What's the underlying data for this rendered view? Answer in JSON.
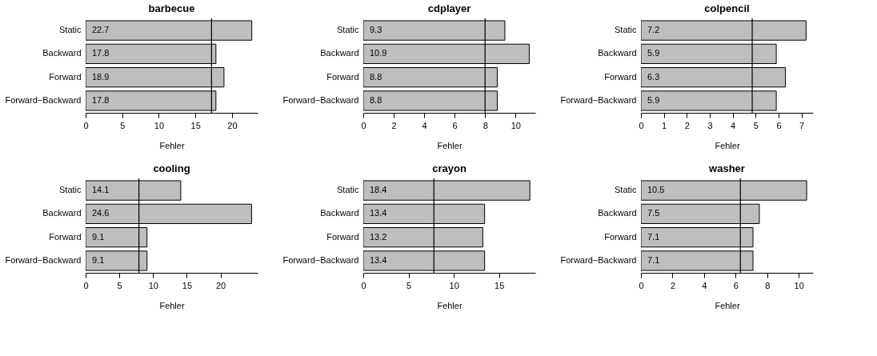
{
  "chart_data": [
    {
      "type": "bar",
      "orientation": "horizontal",
      "title": "barbecue",
      "xlabel": "Fehler",
      "categories": [
        "Static",
        "Backward",
        "Forward",
        "Forward−Backward"
      ],
      "values": [
        22.7,
        17.8,
        18.9,
        17.8
      ],
      "color": "#bebebe",
      "xlim": [
        0,
        23.5
      ],
      "xticks": [
        0,
        5,
        10,
        15,
        20
      ],
      "data_labels": true,
      "grid": false,
      "ref_lines": [
        {
          "axis": "x",
          "value": 17.2
        }
      ]
    },
    {
      "type": "bar",
      "orientation": "horizontal",
      "title": "cdplayer",
      "xlabel": "Fehler",
      "categories": [
        "Static",
        "Backward",
        "Forward",
        "Forward−Backward"
      ],
      "values": [
        9.3,
        10.9,
        8.8,
        8.8
      ],
      "color": "#bebebe",
      "xlim": [
        0,
        11.3
      ],
      "xticks": [
        0,
        2,
        4,
        6,
        8,
        10
      ],
      "data_labels": true,
      "grid": false,
      "ref_lines": [
        {
          "axis": "x",
          "value": 8.0
        }
      ]
    },
    {
      "type": "bar",
      "orientation": "horizontal",
      "title": "colpencil",
      "xlabel": "Fehler",
      "categories": [
        "Static",
        "Backward",
        "Forward",
        "Forward−Backward"
      ],
      "values": [
        7.2,
        5.9,
        6.3,
        5.9
      ],
      "color": "#bebebe",
      "xlim": [
        0,
        7.5
      ],
      "xticks": [
        0,
        1,
        2,
        3,
        4,
        5,
        6,
        7
      ],
      "data_labels": true,
      "grid": false,
      "ref_lines": [
        {
          "axis": "x",
          "value": 4.85
        }
      ]
    },
    {
      "type": "bar",
      "orientation": "horizontal",
      "title": "cooling",
      "xlabel": "Fehler",
      "categories": [
        "Static",
        "Backward",
        "Forward",
        "Forward−Backward"
      ],
      "values": [
        14.1,
        24.6,
        9.1,
        9.1
      ],
      "color": "#bebebe",
      "xlim": [
        0,
        25.5
      ],
      "xticks": [
        0,
        5,
        10,
        15,
        20
      ],
      "data_labels": true,
      "grid": false,
      "ref_lines": [
        {
          "axis": "x",
          "value": 7.9
        }
      ]
    },
    {
      "type": "bar",
      "orientation": "horizontal",
      "title": "crayon",
      "xlabel": "Fehler",
      "categories": [
        "Static",
        "Backward",
        "Forward",
        "Forward−Backward"
      ],
      "values": [
        18.4,
        13.4,
        13.2,
        13.4
      ],
      "color": "#bebebe",
      "xlim": [
        0,
        19
      ],
      "xticks": [
        0,
        5,
        10,
        15
      ],
      "data_labels": true,
      "grid": false,
      "ref_lines": [
        {
          "axis": "x",
          "value": 7.8
        }
      ]
    },
    {
      "type": "bar",
      "orientation": "horizontal",
      "title": "washer",
      "xlabel": "Fehler",
      "categories": [
        "Static",
        "Backward",
        "Forward",
        "Forward−Backward"
      ],
      "values": [
        10.5,
        7.5,
        7.1,
        7.1
      ],
      "color": "#bebebe",
      "xlim": [
        0,
        10.9
      ],
      "xticks": [
        0,
        2,
        4,
        6,
        8,
        10
      ],
      "data_labels": true,
      "grid": false,
      "ref_lines": [
        {
          "axis": "x",
          "value": 6.3
        }
      ]
    }
  ]
}
